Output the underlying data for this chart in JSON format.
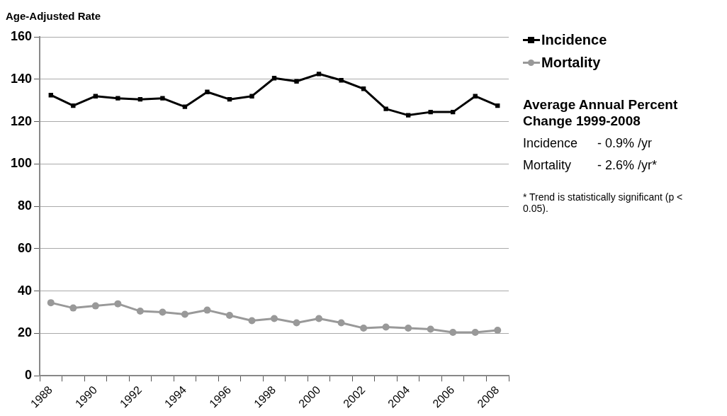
{
  "chart_data": {
    "type": "line",
    "ylabel": "Age-Adjusted Rate",
    "categories": [
      "1988",
      null,
      "1990",
      null,
      "1992",
      null,
      "1994",
      null,
      "1996",
      null,
      "1998",
      null,
      "2000",
      null,
      "2002",
      null,
      "2004",
      null,
      "2006",
      null,
      "2008"
    ],
    "series": [
      {
        "name": "Incidence",
        "color": "#000000",
        "marker": "square",
        "values": [
          132.5,
          127.5,
          132,
          131,
          130.5,
          131,
          127,
          134,
          130.5,
          132,
          140.5,
          139,
          142.5,
          139.5,
          135.5,
          126,
          123,
          124.5,
          124.5,
          132,
          127.5
        ]
      },
      {
        "name": "Mortality",
        "color": "#999999",
        "marker": "circle",
        "values": [
          34.5,
          32,
          33,
          34,
          30.5,
          30,
          29,
          31,
          28.5,
          26,
          27,
          25,
          27,
          25,
          22.5,
          23,
          22.5,
          22,
          20.5,
          20.5,
          21.5
        ]
      }
    ],
    "ylim": [
      0,
      160
    ],
    "yticks": [
      0,
      20,
      40,
      60,
      80,
      100,
      120,
      140,
      160
    ],
    "grid": "y",
    "legend": "top right",
    "line_style": "solid",
    "annotations": [
      "Average Annual Percent Change 1999-2008",
      "Incidence",
      "- 0.9% /yr",
      "Mortality",
      "- 2.6% /yr*",
      "* Trend is statistically significant (p < 0.05)."
    ]
  }
}
